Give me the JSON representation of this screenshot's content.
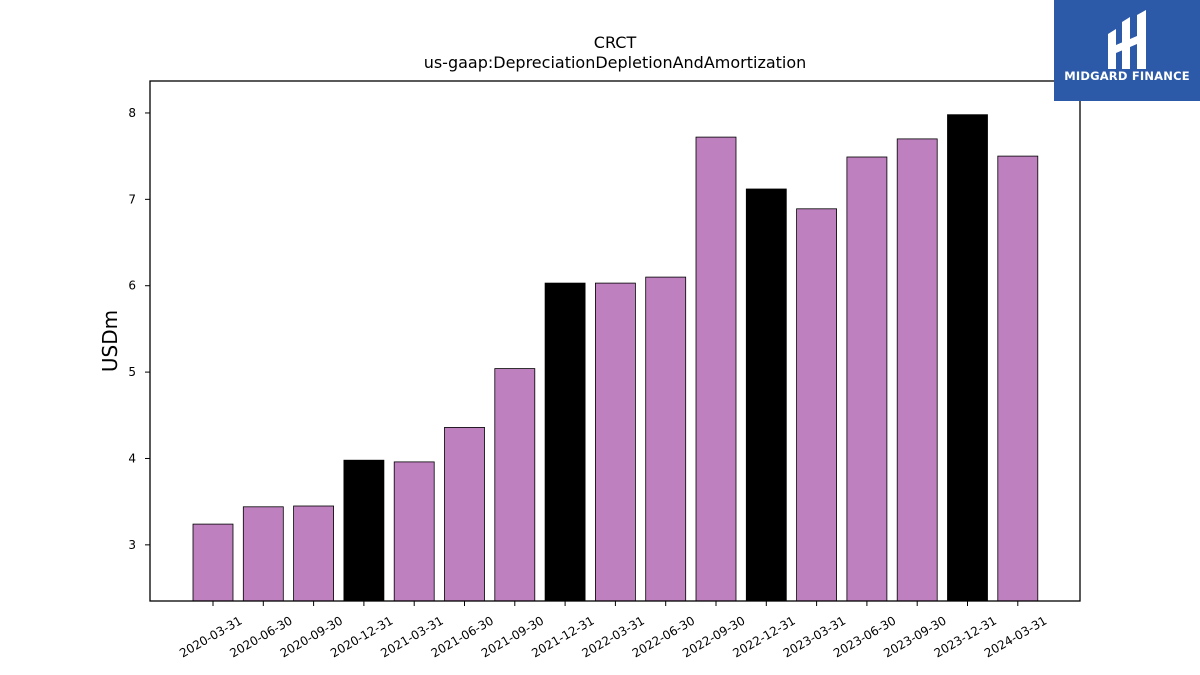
{
  "chart_data": {
    "type": "bar",
    "title": "CRCT",
    "subtitle": "us-gaap:DepreciationDepletionAndAmortization",
    "xlabel": "",
    "ylabel": "USDm",
    "ylim": [
      2.35,
      8.37
    ],
    "yticks": [
      3,
      4,
      5,
      6,
      7,
      8
    ],
    "grid": false,
    "categories": [
      "2020-03-31",
      "2020-06-30",
      "2020-09-30",
      "2020-12-31",
      "2021-03-31",
      "2021-06-30",
      "2021-09-30",
      "2021-12-31",
      "2022-03-31",
      "2022-06-30",
      "2022-09-30",
      "2022-12-31",
      "2023-03-31",
      "2023-06-30",
      "2023-09-30",
      "2023-12-31",
      "2024-03-31"
    ],
    "values": [
      3.24,
      3.44,
      3.45,
      3.98,
      3.96,
      4.36,
      5.04,
      6.03,
      6.03,
      6.1,
      7.72,
      7.12,
      6.89,
      7.49,
      7.7,
      7.98,
      7.5
    ],
    "colors": {
      "quarter_bar": "#bf80bf",
      "year_end_bar": "#000000",
      "bar_edge": "#000000"
    }
  },
  "logo": {
    "text": "MIDGARD FINANCE",
    "background": "#2c5aa8"
  }
}
